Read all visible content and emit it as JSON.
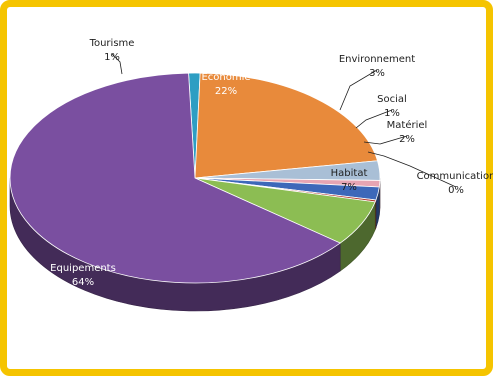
{
  "colors": {
    "frame": "#f5c400",
    "label_light": "#ffffff",
    "label_dark": "#1f1f1f"
  },
  "chart_data": {
    "type": "pie",
    "three_d": true,
    "title": "",
    "slices": [
      {
        "label": "Tourisme",
        "percent_label": "1%",
        "value": 1,
        "color": "#2e9ec3"
      },
      {
        "label": "Economie",
        "percent_label": "22%",
        "value": 22,
        "color": "#e88a3b"
      },
      {
        "label": "Environnement",
        "percent_label": "3%",
        "value": 3,
        "color": "#a9bfd6"
      },
      {
        "label": "Social",
        "percent_label": "1%",
        "value": 1,
        "color": "#e6a5b3"
      },
      {
        "label": "Matériel",
        "percent_label": "2%",
        "value": 2,
        "color": "#3d68b9"
      },
      {
        "label": "Communication",
        "percent_label": "0%",
        "value": 0.3,
        "color": "#b23a2f"
      },
      {
        "label": "Habitat",
        "percent_label": "7%",
        "value": 7,
        "color": "#8cbd53"
      },
      {
        "label": "Equipements",
        "percent_label": "64%",
        "value": 64,
        "color": "#7a4fa0"
      }
    ]
  }
}
